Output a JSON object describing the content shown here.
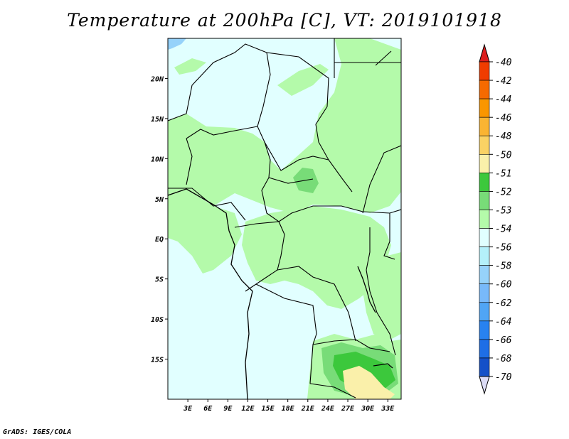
{
  "title": "Temperature at 200hPa [C], VT: 2019101918",
  "credit": "GrADS: IGES/COLA",
  "map": {
    "lon_range": [
      0,
      35
    ],
    "lat_range": [
      -20,
      25
    ],
    "lat_ticks": [
      {
        "label": "20N",
        "value": 20
      },
      {
        "label": "15N",
        "value": 15
      },
      {
        "label": "10N",
        "value": 10
      },
      {
        "label": "5N",
        "value": 5
      },
      {
        "label": "EQ",
        "value": 0
      },
      {
        "label": "5S",
        "value": -5
      },
      {
        "label": "10S",
        "value": -10
      },
      {
        "label": "15S",
        "value": -15
      }
    ],
    "lon_ticks": [
      {
        "label": "3E",
        "value": 3
      },
      {
        "label": "6E",
        "value": 6
      },
      {
        "label": "9E",
        "value": 9
      },
      {
        "label": "12E",
        "value": 12
      },
      {
        "label": "15E",
        "value": 15
      },
      {
        "label": "18E",
        "value": 18
      },
      {
        "label": "21E",
        "value": 21
      },
      {
        "label": "24E",
        "value": 24
      },
      {
        "label": "27E",
        "value": 27
      },
      {
        "label": "30E",
        "value": 30
      },
      {
        "label": "33E",
        "value": 33
      }
    ]
  },
  "colorbar": {
    "top_arrow_color": "#dc1e1e",
    "bottom_arrow_color": "#dcdcf5",
    "levels": [
      {
        "label": "-40",
        "color": "#f03c00"
      },
      {
        "label": "-42",
        "color": "#f56a00"
      },
      {
        "label": "-44",
        "color": "#fa9600"
      },
      {
        "label": "-46",
        "color": "#fab432"
      },
      {
        "label": "-48",
        "color": "#fad264"
      },
      {
        "label": "-50",
        "color": "#faf0aa"
      },
      {
        "label": "-51",
        "color": "#3cc83c"
      },
      {
        "label": "-52",
        "color": "#78dc78"
      },
      {
        "label": "-53",
        "color": "#b4faaa"
      },
      {
        "label": "-54",
        "color": "#e1ffff"
      },
      {
        "label": "-56",
        "color": "#b4f0fa"
      },
      {
        "label": "-58",
        "color": "#96d2fa"
      },
      {
        "label": "-60",
        "color": "#78b9fa"
      },
      {
        "label": "-62",
        "color": "#50a5f5"
      },
      {
        "label": "-64",
        "color": "#2882f0"
      },
      {
        "label": "-66",
        "color": "#1e6ee6"
      },
      {
        "label": "-68",
        "color": "#1450c8"
      },
      {
        "label": "-70",
        "color": "#0a1478"
      }
    ]
  },
  "fields": {
    "background": "#e1ffff",
    "band_light_green": "#b4faaa",
    "band_mid_green": "#78dc78",
    "band_dark_green": "#3cc83c",
    "band_yellow": "#faf0aa",
    "band_blue": "#96d2fa"
  }
}
